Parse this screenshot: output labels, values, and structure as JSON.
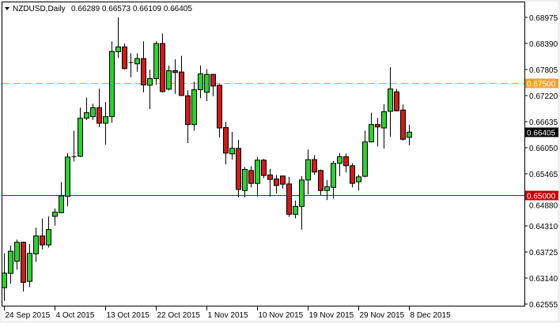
{
  "header": {
    "symbol": "NZDUSD,Daily",
    "ohlc": "0.66289 0.66573 0.66109 0.66405"
  },
  "colors": {
    "bull": "#32cd32",
    "bear": "#c81e1e",
    "resistance_line": "#f0a030",
    "support_line": "#c00000",
    "current_price_bg": "#000000"
  },
  "chart_data": {
    "type": "candlestick",
    "title": "NZDUSD,Daily",
    "ylim": [
      0.62555,
      0.68975
    ],
    "grid": false,
    "y_ticks": [
      "0.68975",
      "0.68390",
      "0.67805",
      "0.67220",
      "0.66635",
      "0.66050",
      "0.65465",
      "0.64880",
      "0.64310",
      "0.63725",
      "0.63140",
      "0.62555"
    ],
    "x_labels": [
      {
        "label": "24 Sep 2015",
        "bar": 0
      },
      {
        "label": "4 Oct 2015",
        "bar": 8
      },
      {
        "label": "13 Oct 2015",
        "bar": 16
      },
      {
        "label": "22 Oct 2015",
        "bar": 24
      },
      {
        "label": "1 Nov 2015",
        "bar": 32
      },
      {
        "label": "10 Nov 2015",
        "bar": 40
      },
      {
        "label": "19 Nov 2015",
        "bar": 48
      },
      {
        "label": "29 Nov 2015",
        "bar": 56
      },
      {
        "label": "8 Dec 2015",
        "bar": 64
      }
    ],
    "horizontal_lines": [
      {
        "price": 0.675,
        "label": "0.67500",
        "style": "dashed",
        "color": "#f0a030"
      },
      {
        "price": 0.65,
        "label": "0.65000",
        "style": "solid",
        "color": "#c00000"
      }
    ],
    "current_price": {
      "price": 0.66405,
      "label": "0.66405"
    },
    "candles": [
      [
        0.62923,
        0.63691,
        0.62627,
        0.63248
      ],
      [
        0.63242,
        0.63869,
        0.63012,
        0.63739
      ],
      [
        0.63514,
        0.63999,
        0.63325,
        0.6394
      ],
      [
        0.6394,
        0.63952,
        0.62835,
        0.63041
      ],
      [
        0.63065,
        0.63898,
        0.62935,
        0.63691
      ],
      [
        0.6368,
        0.64265,
        0.63502,
        0.64081
      ],
      [
        0.64081,
        0.64471,
        0.6378,
        0.6388
      ],
      [
        0.6388,
        0.64519,
        0.63821,
        0.64223
      ],
      [
        0.64519,
        0.64696,
        0.64312,
        0.64613
      ],
      [
        0.64601,
        0.65287,
        0.6459,
        0.6498
      ],
      [
        0.64968,
        0.65937,
        0.64743,
        0.65848
      ],
      [
        0.65842,
        0.66439,
        0.65748,
        0.65854
      ],
      [
        0.65866,
        0.66954,
        0.65848,
        0.66717
      ],
      [
        0.66717,
        0.67178,
        0.66676,
        0.66841
      ],
      [
        0.66753,
        0.67042,
        0.66676,
        0.66954
      ],
      [
        0.66954,
        0.67379,
        0.66516,
        0.66605
      ],
      [
        0.66605,
        0.67078,
        0.66126,
        0.66753
      ],
      [
        0.66753,
        0.68437,
        0.66617,
        0.68212
      ],
      [
        0.68206,
        0.68975,
        0.68065,
        0.68313
      ],
      [
        0.68313,
        0.6839,
        0.67811,
        0.67828
      ],
      [
        0.67964,
        0.68171,
        0.67633,
        0.67952
      ],
      [
        0.67935,
        0.68171,
        0.67757,
        0.68053
      ],
      [
        0.68053,
        0.68437,
        0.67296,
        0.67462
      ],
      [
        0.67456,
        0.67805,
        0.66924,
        0.67604
      ],
      [
        0.67604,
        0.68437,
        0.67462,
        0.6839
      ],
      [
        0.6839,
        0.68614,
        0.67296,
        0.67314
      ],
      [
        0.67367,
        0.67899,
        0.67338,
        0.67781
      ],
      [
        0.67781,
        0.68035,
        0.67261,
        0.6774
      ],
      [
        0.67752,
        0.68112,
        0.67214,
        0.67226
      ],
      [
        0.6722,
        0.67344,
        0.66162,
        0.66575
      ],
      [
        0.66575,
        0.67533,
        0.66439,
        0.67355
      ],
      [
        0.67355,
        0.67899,
        0.67166,
        0.6771
      ],
      [
        0.67296,
        0.67817,
        0.67101,
        0.67698
      ],
      [
        0.67698,
        0.6771,
        0.67208,
        0.67438
      ],
      [
        0.67456,
        0.67485,
        0.6628,
        0.66499
      ],
      [
        0.6651,
        0.66635,
        0.65683,
        0.65937
      ],
      [
        0.65919,
        0.6641,
        0.65789,
        0.66043
      ],
      [
        0.66043,
        0.66233,
        0.64944,
        0.65122
      ],
      [
        0.65098,
        0.65624,
        0.64944,
        0.65571
      ],
      [
        0.65547,
        0.65642,
        0.65169,
        0.65257
      ],
      [
        0.65257,
        0.65848,
        0.64962,
        0.65778
      ],
      [
        0.65778,
        0.65807,
        0.65376,
        0.65435
      ],
      [
        0.65447,
        0.65583,
        0.64962,
        0.65346
      ],
      [
        0.65358,
        0.65447,
        0.65033,
        0.6521
      ],
      [
        0.65423,
        0.65435,
        0.6514,
        0.6524
      ],
      [
        0.65246,
        0.65405,
        0.64507,
        0.64566
      ],
      [
        0.64566,
        0.64874,
        0.64477,
        0.64743
      ],
      [
        0.64743,
        0.65423,
        0.64223,
        0.65334
      ],
      [
        0.65334,
        0.66014,
        0.65009,
        0.6579
      ],
      [
        0.6579,
        0.6589,
        0.65453,
        0.65512
      ],
      [
        0.65547,
        0.65565,
        0.64992,
        0.65098
      ],
      [
        0.65098,
        0.65334,
        0.64885,
        0.65181
      ],
      [
        0.65169,
        0.6576,
        0.64921,
        0.65707
      ],
      [
        0.65707,
        0.65937,
        0.65417,
        0.65855
      ],
      [
        0.65855,
        0.65926,
        0.65506,
        0.65654
      ],
      [
        0.65654,
        0.65713,
        0.65169,
        0.65258
      ],
      [
        0.65293,
        0.65453,
        0.65098,
        0.65405
      ],
      [
        0.65417,
        0.6644,
        0.65394,
        0.66186
      ],
      [
        0.66186,
        0.66842,
        0.66174,
        0.66576
      ],
      [
        0.66576,
        0.66723,
        0.66085,
        0.66522
      ],
      [
        0.66499,
        0.67031,
        0.66038,
        0.66865
      ],
      [
        0.66871,
        0.67858,
        0.66304,
        0.67373
      ],
      [
        0.67308,
        0.67373,
        0.66871,
        0.66883
      ],
      [
        0.66901,
        0.67025,
        0.66221,
        0.66245
      ],
      [
        0.66289,
        0.66573,
        0.66109,
        0.66405
      ]
    ]
  }
}
